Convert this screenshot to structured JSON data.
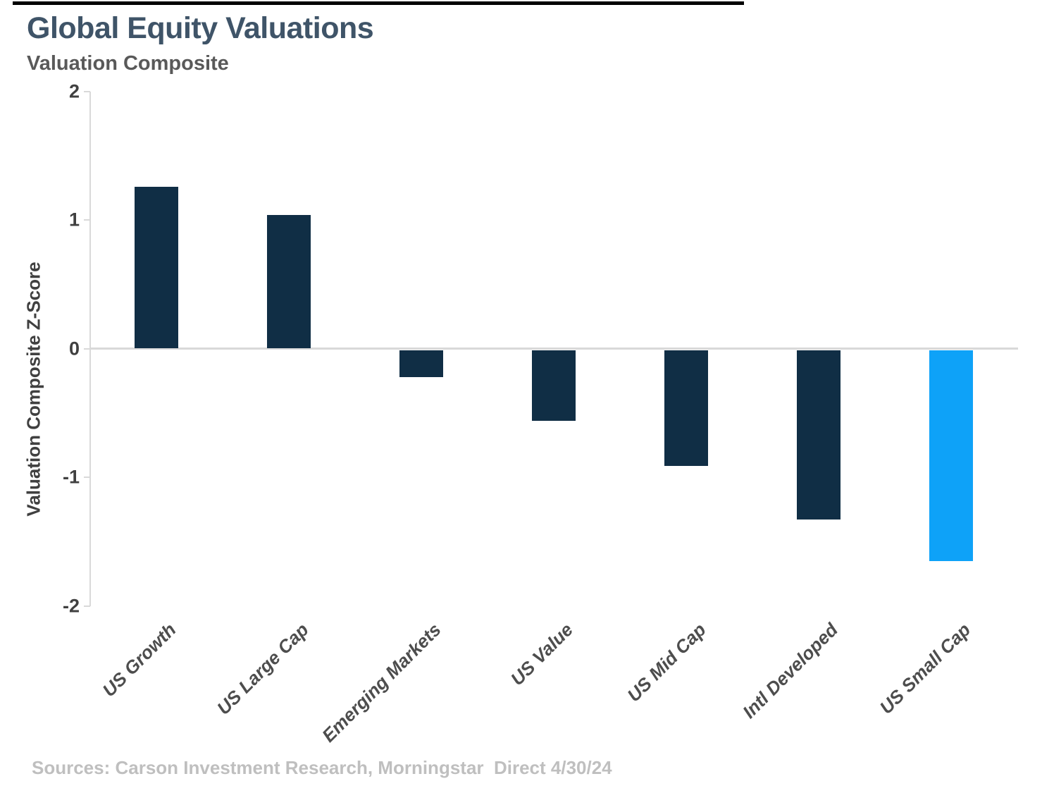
{
  "header": {
    "title": "Global Equity Valuations",
    "subtitle": "Valuation Composite"
  },
  "chart_data": {
    "type": "bar",
    "title": "Global Equity Valuations",
    "subtitle": "Valuation Composite",
    "categories": [
      "US Growth",
      "US Large Cap",
      "Emerging Markets",
      "US Value",
      "US Mid Cap",
      "Intl Developed",
      "US Small Cap"
    ],
    "values": [
      1.26,
      1.04,
      -0.21,
      -0.55,
      -0.9,
      -1.32,
      -1.64
    ],
    "xlabel": "",
    "ylabel": "Valuation Composite Z-Score",
    "ylim": [
      -2,
      2
    ],
    "yticks": [
      2,
      1,
      0,
      -1,
      -2
    ],
    "grid": "zero-line-only",
    "legend_position": "none",
    "orientation": "vertical",
    "bar_colors": [
      "#102E45",
      "#102E45",
      "#102E45",
      "#102E45",
      "#102E45",
      "#102E45",
      "#0EA2F8"
    ],
    "default_bar_color": "#102E45",
    "highlight_category": "US Small Cap",
    "highlight_color": "#0EA2F8"
  },
  "footer": {
    "sources": "Sources: Carson Investment Research, Morningstar  Direct 4/30/24"
  },
  "colors": {
    "title_text": "#3F5468",
    "subtitle_text": "#595959",
    "axis_text": "#404040",
    "category_text": "#4D4D4D",
    "source_text": "#BFBFBF",
    "gridline": "#D9D9D9",
    "bar_default": "#102E45",
    "bar_highlight": "#0EA2F8",
    "top_bar": "#000000"
  }
}
